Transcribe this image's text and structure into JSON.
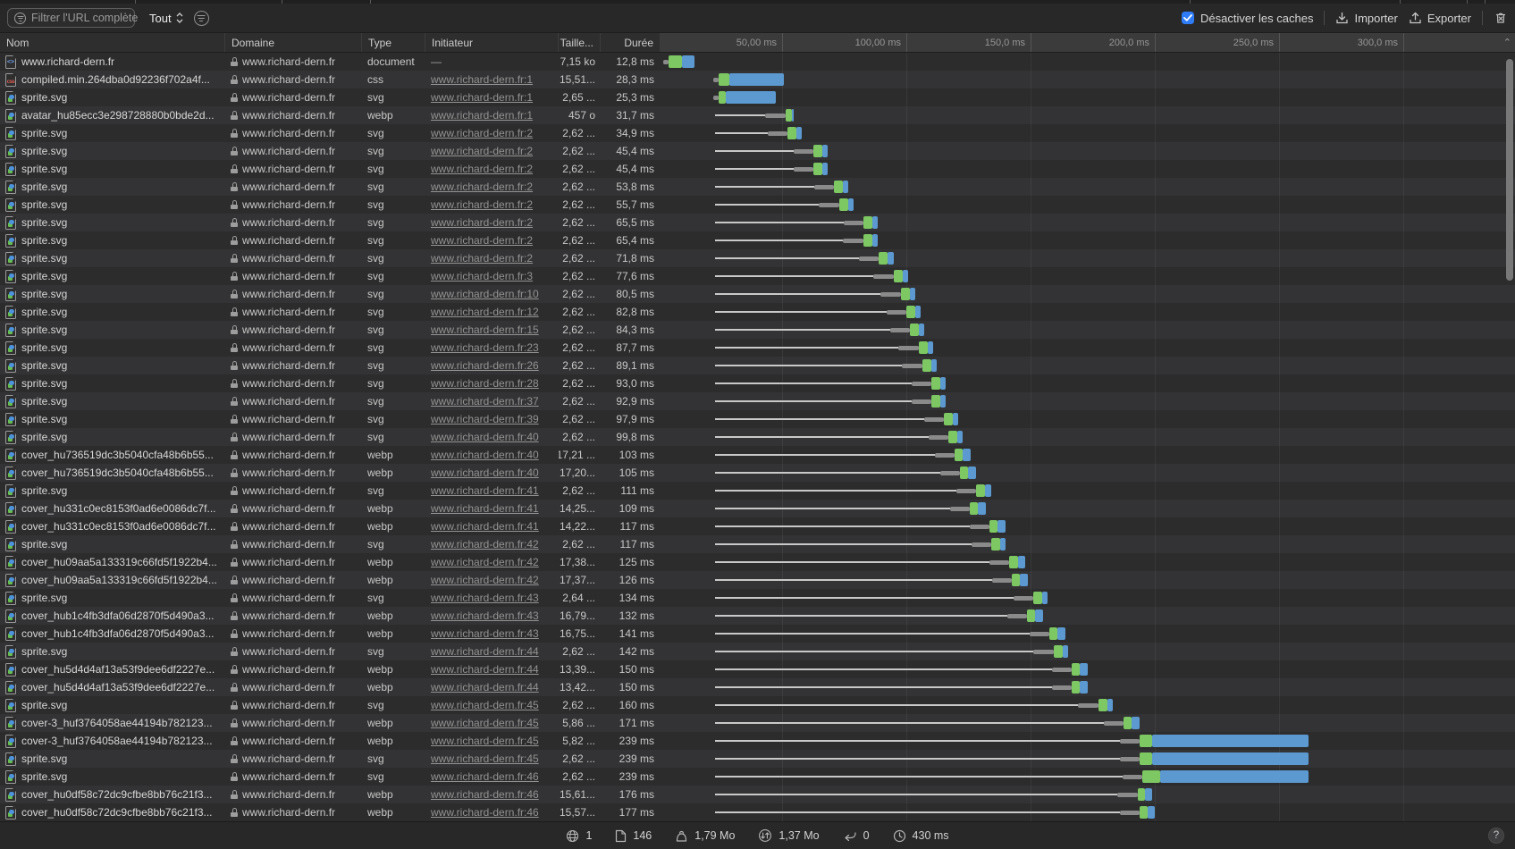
{
  "toolbar": {
    "filter_placeholder": "Filtrer l'URL complète",
    "scope_label": "Tout",
    "disable_caches_label": "Désactiver les caches",
    "disable_caches_checked": true,
    "import_label": "Importer",
    "export_label": "Exporter",
    "accent_color": "#2f7cf6"
  },
  "table": {
    "columns": {
      "name": "Nom",
      "domain": "Domaine",
      "type": "Type",
      "initiator": "Initiateur",
      "size": "Taille...",
      "duration": "Durée"
    }
  },
  "timeline": {
    "ticks": [
      {
        "label": "50,00 ms",
        "ms": 50
      },
      {
        "label": "100,00 ms",
        "ms": 100
      },
      {
        "label": "150,0 ms",
        "ms": 150
      },
      {
        "label": "200,0 ms",
        "ms": 200
      },
      {
        "label": "250,0 ms",
        "ms": 250
      },
      {
        "label": "300,0 ms",
        "ms": 300
      }
    ],
    "colors": {
      "latency": "#7dc863",
      "download": "#5b99d0",
      "waiting": "#c9c9c9",
      "stall": "#8a8a8a"
    },
    "collapse_chevron": "⌃"
  },
  "rows": [
    {
      "name": "www.richard-dern.fr",
      "icon": "document-icon",
      "domain": "www.richard-dern.fr",
      "type": "document",
      "initiator": "—",
      "initiator_is_link": false,
      "size": "7,15 ko",
      "duration": "12,8 ms",
      "timing": {
        "s": 2,
        "g": 4.3,
        "b": 9.8,
        "e": 14.8
      }
    },
    {
      "name": "compiled.min.264dba0d92236f702a4f...",
      "icon": "css-icon",
      "domain": "www.richard-dern.fr",
      "type": "css",
      "initiator": "www.richard-dern.fr:1",
      "initiator_is_link": true,
      "size": "15,51...",
      "duration": "28,3 ms",
      "timing": {
        "s": 22.3,
        "g": 24.5,
        "b": 28.8,
        "e": 50.6
      }
    },
    {
      "name": "sprite.svg",
      "icon": "image-icon",
      "domain": "www.richard-dern.fr",
      "type": "svg",
      "initiator": "www.richard-dern.fr:1",
      "initiator_is_link": true,
      "size": "2,65 ...",
      "duration": "25,3 ms",
      "timing": {
        "s": 22.3,
        "g": 24.5,
        "b": 27.3,
        "e": 47.6
      }
    },
    {
      "name": "avatar_hu85ecc3e298728880b0bde2d...",
      "icon": "image-icon",
      "domain": "www.richard-dern.fr",
      "type": "webp",
      "initiator": "www.richard-dern.fr:1",
      "initiator_is_link": true,
      "size": "457 o",
      "duration": "31,7 ms",
      "timing": {
        "s": 23,
        "g": 51.3,
        "b": 54,
        "e": 54.7
      }
    },
    {
      "name": "sprite.svg",
      "icon": "image-icon",
      "domain": "www.richard-dern.fr",
      "type": "svg",
      "initiator": "www.richard-dern.fr:2",
      "initiator_is_link": true,
      "size": "2,62 ...",
      "duration": "34,9 ms",
      "timing": {
        "s": 23,
        "g": 52.1,
        "b": 55.7,
        "e": 57.9
      }
    },
    {
      "name": "sprite.svg",
      "icon": "image-icon",
      "domain": "www.richard-dern.fr",
      "type": "svg",
      "initiator": "www.richard-dern.fr:2",
      "initiator_is_link": true,
      "size": "2,62 ...",
      "duration": "45,4 ms",
      "timing": {
        "s": 23,
        "g": 62.6,
        "b": 66.2,
        "e": 68.4
      }
    },
    {
      "name": "sprite.svg",
      "icon": "image-icon",
      "domain": "www.richard-dern.fr",
      "type": "svg",
      "initiator": "www.richard-dern.fr:2",
      "initiator_is_link": true,
      "size": "2,62 ...",
      "duration": "45,4 ms",
      "timing": {
        "s": 23,
        "g": 62.6,
        "b": 66.2,
        "e": 68.4
      }
    },
    {
      "name": "sprite.svg",
      "icon": "image-icon",
      "domain": "www.richard-dern.fr",
      "type": "svg",
      "initiator": "www.richard-dern.fr:2",
      "initiator_is_link": true,
      "size": "2,62 ...",
      "duration": "53,8 ms",
      "timing": {
        "s": 23,
        "g": 71,
        "b": 74.6,
        "e": 76.8
      }
    },
    {
      "name": "sprite.svg",
      "icon": "image-icon",
      "domain": "www.richard-dern.fr",
      "type": "svg",
      "initiator": "www.richard-dern.fr:2",
      "initiator_is_link": true,
      "size": "2,62 ...",
      "duration": "55,7 ms",
      "timing": {
        "s": 23,
        "g": 72.9,
        "b": 76.5,
        "e": 78.7
      }
    },
    {
      "name": "sprite.svg",
      "icon": "image-icon",
      "domain": "www.richard-dern.fr",
      "type": "svg",
      "initiator": "www.richard-dern.fr:2",
      "initiator_is_link": true,
      "size": "2,62 ...",
      "duration": "65,5 ms",
      "timing": {
        "s": 23,
        "g": 82.7,
        "b": 86.3,
        "e": 88.5
      }
    },
    {
      "name": "sprite.svg",
      "icon": "image-icon",
      "domain": "www.richard-dern.fr",
      "type": "svg",
      "initiator": "www.richard-dern.fr:2",
      "initiator_is_link": true,
      "size": "2,62 ...",
      "duration": "65,4 ms",
      "timing": {
        "s": 23,
        "g": 82.6,
        "b": 86.2,
        "e": 88.4
      }
    },
    {
      "name": "sprite.svg",
      "icon": "image-icon",
      "domain": "www.richard-dern.fr",
      "type": "svg",
      "initiator": "www.richard-dern.fr:2",
      "initiator_is_link": true,
      "size": "2,62 ...",
      "duration": "71,8 ms",
      "timing": {
        "s": 23,
        "g": 89,
        "b": 92.6,
        "e": 94.8
      }
    },
    {
      "name": "sprite.svg",
      "icon": "image-icon",
      "domain": "www.richard-dern.fr",
      "type": "svg",
      "initiator": "www.richard-dern.fr:3",
      "initiator_is_link": true,
      "size": "2,62 ...",
      "duration": "77,6 ms",
      "timing": {
        "s": 23,
        "g": 94.8,
        "b": 98.4,
        "e": 100.6
      }
    },
    {
      "name": "sprite.svg",
      "icon": "image-icon",
      "domain": "www.richard-dern.fr",
      "type": "svg",
      "initiator": "www.richard-dern.fr:10",
      "initiator_is_link": true,
      "size": "2,62 ...",
      "duration": "80,5 ms",
      "timing": {
        "s": 23,
        "g": 97.7,
        "b": 101.3,
        "e": 103.5
      }
    },
    {
      "name": "sprite.svg",
      "icon": "image-icon",
      "domain": "www.richard-dern.fr",
      "type": "svg",
      "initiator": "www.richard-dern.fr:12",
      "initiator_is_link": true,
      "size": "2,62 ...",
      "duration": "82,8 ms",
      "timing": {
        "s": 23,
        "g": 100,
        "b": 103.6,
        "e": 105.8
      }
    },
    {
      "name": "sprite.svg",
      "icon": "image-icon",
      "domain": "www.richard-dern.fr",
      "type": "svg",
      "initiator": "www.richard-dern.fr:15",
      "initiator_is_link": true,
      "size": "2,62 ...",
      "duration": "84,3 ms",
      "timing": {
        "s": 23,
        "g": 101.5,
        "b": 105.1,
        "e": 107.3
      }
    },
    {
      "name": "sprite.svg",
      "icon": "image-icon",
      "domain": "www.richard-dern.fr",
      "type": "svg",
      "initiator": "www.richard-dern.fr:23",
      "initiator_is_link": true,
      "size": "2,62 ...",
      "duration": "87,7 ms",
      "timing": {
        "s": 23,
        "g": 104.9,
        "b": 108.5,
        "e": 110.7
      }
    },
    {
      "name": "sprite.svg",
      "icon": "image-icon",
      "domain": "www.richard-dern.fr",
      "type": "svg",
      "initiator": "www.richard-dern.fr:26",
      "initiator_is_link": true,
      "size": "2,62 ...",
      "duration": "89,1 ms",
      "timing": {
        "s": 23,
        "g": 106.3,
        "b": 109.9,
        "e": 112.1
      }
    },
    {
      "name": "sprite.svg",
      "icon": "image-icon",
      "domain": "www.richard-dern.fr",
      "type": "svg",
      "initiator": "www.richard-dern.fr:28",
      "initiator_is_link": true,
      "size": "2,62 ...",
      "duration": "93,0 ms",
      "timing": {
        "s": 23,
        "g": 110.2,
        "b": 113.8,
        "e": 116
      }
    },
    {
      "name": "sprite.svg",
      "icon": "image-icon",
      "domain": "www.richard-dern.fr",
      "type": "svg",
      "initiator": "www.richard-dern.fr:37",
      "initiator_is_link": true,
      "size": "2,62 ...",
      "duration": "92,9 ms",
      "timing": {
        "s": 23,
        "g": 110.1,
        "b": 113.7,
        "e": 115.9
      }
    },
    {
      "name": "sprite.svg",
      "icon": "image-icon",
      "domain": "www.richard-dern.fr",
      "type": "svg",
      "initiator": "www.richard-dern.fr:39",
      "initiator_is_link": true,
      "size": "2,62 ...",
      "duration": "97,9 ms",
      "timing": {
        "s": 23,
        "g": 115.1,
        "b": 118.7,
        "e": 120.9
      }
    },
    {
      "name": "sprite.svg",
      "icon": "image-icon",
      "domain": "www.richard-dern.fr",
      "type": "svg",
      "initiator": "www.richard-dern.fr:40",
      "initiator_is_link": true,
      "size": "2,62 ...",
      "duration": "99,8 ms",
      "timing": {
        "s": 23,
        "g": 117,
        "b": 120.6,
        "e": 122.8
      }
    },
    {
      "name": "cover_hu736519dc3b5040cfa48b6b55...",
      "icon": "image-icon",
      "domain": "www.richard-dern.fr",
      "type": "webp",
      "initiator": "www.richard-dern.fr:40",
      "initiator_is_link": true,
      "size": "17,21 ...",
      "duration": "103 ms",
      "timing": {
        "s": 23,
        "g": 119.5,
        "b": 122.8,
        "e": 126
      }
    },
    {
      "name": "cover_hu736519dc3b5040cfa48b6b55...",
      "icon": "image-icon",
      "domain": "www.richard-dern.fr",
      "type": "webp",
      "initiator": "www.richard-dern.fr:40",
      "initiator_is_link": true,
      "size": "17,20...",
      "duration": "105 ms",
      "timing": {
        "s": 23,
        "g": 121.5,
        "b": 124.8,
        "e": 128
      }
    },
    {
      "name": "sprite.svg",
      "icon": "image-icon",
      "domain": "www.richard-dern.fr",
      "type": "svg",
      "initiator": "www.richard-dern.fr:41",
      "initiator_is_link": true,
      "size": "2,62 ...",
      "duration": "111 ms",
      "timing": {
        "s": 23,
        "g": 128.2,
        "b": 131.8,
        "e": 134
      }
    },
    {
      "name": "cover_hu331c0ec8153f0ad6e0086dc7f...",
      "icon": "image-icon",
      "domain": "www.richard-dern.fr",
      "type": "webp",
      "initiator": "www.richard-dern.fr:41",
      "initiator_is_link": true,
      "size": "14,25...",
      "duration": "109 ms",
      "timing": {
        "s": 23,
        "g": 125.5,
        "b": 128.8,
        "e": 132
      }
    },
    {
      "name": "cover_hu331c0ec8153f0ad6e0086dc7f...",
      "icon": "image-icon",
      "domain": "www.richard-dern.fr",
      "type": "webp",
      "initiator": "www.richard-dern.fr:41",
      "initiator_is_link": true,
      "size": "14,22...",
      "duration": "117 ms",
      "timing": {
        "s": 23,
        "g": 133.5,
        "b": 136.8,
        "e": 140
      }
    },
    {
      "name": "sprite.svg",
      "icon": "image-icon",
      "domain": "www.richard-dern.fr",
      "type": "svg",
      "initiator": "www.richard-dern.fr:42",
      "initiator_is_link": true,
      "size": "2,62 ...",
      "duration": "117 ms",
      "timing": {
        "s": 23,
        "g": 134.2,
        "b": 137.8,
        "e": 140
      }
    },
    {
      "name": "cover_hu09aa5a133319c66fd5f1922b4...",
      "icon": "image-icon",
      "domain": "www.richard-dern.fr",
      "type": "webp",
      "initiator": "www.richard-dern.fr:42",
      "initiator_is_link": true,
      "size": "17,38...",
      "duration": "125 ms",
      "timing": {
        "s": 23,
        "g": 141.5,
        "b": 144.8,
        "e": 148
      }
    },
    {
      "name": "cover_hu09aa5a133319c66fd5f1922b4...",
      "icon": "image-icon",
      "domain": "www.richard-dern.fr",
      "type": "webp",
      "initiator": "www.richard-dern.fr:42",
      "initiator_is_link": true,
      "size": "17,37...",
      "duration": "126 ms",
      "timing": {
        "s": 23,
        "g": 142.5,
        "b": 145.8,
        "e": 149
      }
    },
    {
      "name": "sprite.svg",
      "icon": "image-icon",
      "domain": "www.richard-dern.fr",
      "type": "svg",
      "initiator": "www.richard-dern.fr:43",
      "initiator_is_link": true,
      "size": "2,64 ...",
      "duration": "134 ms",
      "timing": {
        "s": 23,
        "g": 151.2,
        "b": 154.8,
        "e": 157
      }
    },
    {
      "name": "cover_hub1c4fb3dfa06d2870f5d490a3...",
      "icon": "image-icon",
      "domain": "www.richard-dern.fr",
      "type": "webp",
      "initiator": "www.richard-dern.fr:43",
      "initiator_is_link": true,
      "size": "16,79...",
      "duration": "132 ms",
      "timing": {
        "s": 23,
        "g": 148.5,
        "b": 151.8,
        "e": 155
      }
    },
    {
      "name": "cover_hub1c4fb3dfa06d2870f5d490a3...",
      "icon": "image-icon",
      "domain": "www.richard-dern.fr",
      "type": "webp",
      "initiator": "www.richard-dern.fr:43",
      "initiator_is_link": true,
      "size": "16,75...",
      "duration": "141 ms",
      "timing": {
        "s": 23,
        "g": 157.5,
        "b": 160.8,
        "e": 164
      }
    },
    {
      "name": "sprite.svg",
      "icon": "image-icon",
      "domain": "www.richard-dern.fr",
      "type": "svg",
      "initiator": "www.richard-dern.fr:44",
      "initiator_is_link": true,
      "size": "2,62 ...",
      "duration": "142 ms",
      "timing": {
        "s": 23,
        "g": 159.2,
        "b": 162.8,
        "e": 165
      }
    },
    {
      "name": "cover_hu5d4d4af13a53f9dee6df2227e...",
      "icon": "image-icon",
      "domain": "www.richard-dern.fr",
      "type": "webp",
      "initiator": "www.richard-dern.fr:44",
      "initiator_is_link": true,
      "size": "13,39...",
      "duration": "150 ms",
      "timing": {
        "s": 23,
        "g": 166.5,
        "b": 169.8,
        "e": 173
      }
    },
    {
      "name": "cover_hu5d4d4af13a53f9dee6df2227e...",
      "icon": "image-icon",
      "domain": "www.richard-dern.fr",
      "type": "webp",
      "initiator": "www.richard-dern.fr:44",
      "initiator_is_link": true,
      "size": "13,42...",
      "duration": "150 ms",
      "timing": {
        "s": 23,
        "g": 166.5,
        "b": 169.8,
        "e": 173
      }
    },
    {
      "name": "sprite.svg",
      "icon": "image-icon",
      "domain": "www.richard-dern.fr",
      "type": "svg",
      "initiator": "www.richard-dern.fr:45",
      "initiator_is_link": true,
      "size": "2,62 ...",
      "duration": "160 ms",
      "timing": {
        "s": 23,
        "g": 177.2,
        "b": 180.8,
        "e": 183
      }
    },
    {
      "name": "cover-3_huf3764058ae44194b782123...",
      "icon": "image-icon",
      "domain": "www.richard-dern.fr",
      "type": "webp",
      "initiator": "www.richard-dern.fr:45",
      "initiator_is_link": true,
      "size": "5,86 ...",
      "duration": "171 ms",
      "timing": {
        "s": 23,
        "g": 187.5,
        "b": 190.8,
        "e": 194
      }
    },
    {
      "name": "cover-3_huf3764058ae44194b782123...",
      "icon": "image-icon",
      "domain": "www.richard-dern.fr",
      "type": "webp",
      "initiator": "www.richard-dern.fr:45",
      "initiator_is_link": true,
      "size": "5,82 ...",
      "duration": "239 ms",
      "timing": {
        "s": 23,
        "g": 194,
        "b": 199,
        "e": 262
      }
    },
    {
      "name": "sprite.svg",
      "icon": "image-icon",
      "domain": "www.richard-dern.fr",
      "type": "svg",
      "initiator": "www.richard-dern.fr:45",
      "initiator_is_link": true,
      "size": "2,62 ...",
      "duration": "239 ms",
      "timing": {
        "s": 23,
        "g": 194,
        "b": 199,
        "e": 262
      }
    },
    {
      "name": "sprite.svg",
      "icon": "image-icon",
      "domain": "www.richard-dern.fr",
      "type": "svg",
      "initiator": "www.richard-dern.fr:46",
      "initiator_is_link": true,
      "size": "2,62 ...",
      "duration": "239 ms",
      "timing": {
        "s": 23,
        "g": 195,
        "b": 202,
        "e": 262
      }
    },
    {
      "name": "cover_hu0df58c72dc9cfbe8bb76c21f3...",
      "icon": "image-icon",
      "domain": "www.richard-dern.fr",
      "type": "webp",
      "initiator": "www.richard-dern.fr:46",
      "initiator_is_link": true,
      "size": "15,61...",
      "duration": "176 ms",
      "timing": {
        "s": 23,
        "g": 193,
        "b": 196,
        "e": 199
      }
    },
    {
      "name": "cover_hu0df58c72dc9cfbe8bb76c21f3...",
      "icon": "image-icon",
      "domain": "www.richard-dern.fr",
      "type": "webp",
      "initiator": "www.richard-dern.fr:46",
      "initiator_is_link": true,
      "size": "15,57...",
      "duration": "177 ms",
      "timing": {
        "s": 23,
        "g": 194,
        "b": 197,
        "e": 200
      }
    }
  ],
  "status_bar": {
    "domains": "1",
    "resources": "146",
    "total_size": "1,79 Mo",
    "transferred": "1,37 Mo",
    "redirects": "0",
    "load_time": "430 ms",
    "help_label": "?"
  }
}
